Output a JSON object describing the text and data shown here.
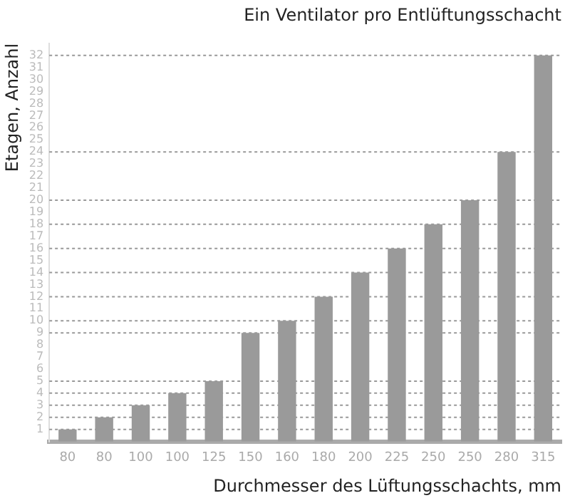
{
  "chart_data": {
    "type": "bar",
    "title": "Ein Ventilator pro Entlüftungsschacht",
    "xlabel": "Durchmesser des Lüftungsschachts, mm",
    "ylabel": "Etagen, Anzahl",
    "categories": [
      "80",
      "80",
      "100",
      "100",
      "125",
      "150",
      "160",
      "180",
      "200",
      "225",
      "250",
      "250",
      "280",
      "315"
    ],
    "values": [
      1,
      2,
      3,
      4,
      5,
      9,
      10,
      12,
      14,
      16,
      18,
      20,
      24,
      32
    ],
    "color": "#9a9a9a",
    "ylim": [
      0,
      33
    ],
    "yticks": [
      1,
      2,
      3,
      4,
      5,
      6,
      7,
      8,
      9,
      10,
      11,
      12,
      13,
      14,
      15,
      16,
      17,
      18,
      19,
      20,
      21,
      22,
      23,
      24,
      25,
      26,
      27,
      28,
      29,
      30,
      31,
      32
    ],
    "ref_lines": [
      {
        "axis": "y",
        "value": 1,
        "line_style": "dotted"
      },
      {
        "axis": "y",
        "value": 2,
        "line_style": "dotted"
      },
      {
        "axis": "y",
        "value": 3,
        "line_style": "dotted"
      },
      {
        "axis": "y",
        "value": 4,
        "line_style": "dotted"
      },
      {
        "axis": "y",
        "value": 5,
        "line_style": "dotted"
      },
      {
        "axis": "y",
        "value": 9,
        "line_style": "dotted"
      },
      {
        "axis": "y",
        "value": 10,
        "line_style": "dotted"
      },
      {
        "axis": "y",
        "value": 12,
        "line_style": "dotted"
      },
      {
        "axis": "y",
        "value": 14,
        "line_style": "dotted"
      },
      {
        "axis": "y",
        "value": 16,
        "line_style": "dotted"
      },
      {
        "axis": "y",
        "value": 18,
        "line_style": "dotted"
      },
      {
        "axis": "y",
        "value": 20,
        "line_style": "dotted"
      },
      {
        "axis": "y",
        "value": 24,
        "line_style": "dotted"
      },
      {
        "axis": "y",
        "value": 32,
        "line_style": "dotted"
      }
    ],
    "grid": false,
    "legend": false
  }
}
